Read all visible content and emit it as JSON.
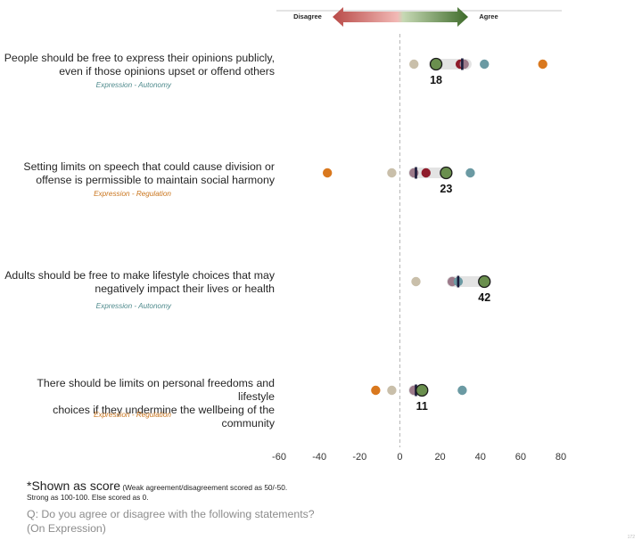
{
  "header": {
    "disagree_label": "Disagree",
    "agree_label": "Agree",
    "disagree_color": "#b84a47",
    "agree_color": "#3e6b2a"
  },
  "statements": [
    {
      "line1": "People should be free to express their opinions publicly,",
      "line2": "even if those opinions upset or offend others",
      "tag": "Expression - Autonomy",
      "tag_color": "#4e8a8c"
    },
    {
      "line1": "Setting limits on speech that could cause division or",
      "line2": "offense is permissible to maintain social harmony",
      "tag": "Expression - Regulation",
      "tag_color": "#c9741c"
    },
    {
      "line1": "Adults should be free to make lifestyle choices that may",
      "line2": "negatively impact their lives or health",
      "tag": "Expression - Autonomy",
      "tag_color": "#4e8a8c"
    },
    {
      "line1": "There should be limits on personal freedoms and lifestyle",
      "line2": "choices if they undermine the wellbeing of the community",
      "tag": "Expression - Regulation",
      "tag_color": "#c9741c"
    }
  ],
  "chart_data": {
    "type": "scatter",
    "xlim": [
      -60,
      80
    ],
    "xticks": [
      -60,
      -40,
      -20,
      0,
      20,
      40,
      60,
      80
    ],
    "grid": false,
    "rows": [
      {
        "value_label": "18",
        "highlight": 18,
        "band": [
          17,
          33
        ],
        "marker": 31,
        "points": [
          {
            "x": 7,
            "color": "#c9bfaa"
          },
          {
            "x": 30,
            "color": "#8f1c2b"
          },
          {
            "x": 32,
            "color": "#9c7a8a"
          },
          {
            "x": 42,
            "color": "#6b9aa3"
          },
          {
            "x": 71,
            "color": "#d9781e"
          }
        ]
      },
      {
        "value_label": "23",
        "highlight": 23,
        "band": [
          7,
          23
        ],
        "marker": 8,
        "points": [
          {
            "x": -36,
            "color": "#d9781e"
          },
          {
            "x": -4,
            "color": "#c9bfaa"
          },
          {
            "x": 7,
            "color": "#9c7a8a"
          },
          {
            "x": 13,
            "color": "#8f1c2b"
          },
          {
            "x": 35,
            "color": "#6b9aa3"
          }
        ]
      },
      {
        "value_label": "42",
        "highlight": 42,
        "band": [
          26,
          42
        ],
        "marker": 29,
        "points": [
          {
            "x": 8,
            "color": "#c9bfaa"
          },
          {
            "x": 26,
            "color": "#9c7a8a"
          },
          {
            "x": 29,
            "color": "#6b9aa3"
          }
        ]
      },
      {
        "value_label": "11",
        "highlight": 11,
        "band": [
          7,
          11
        ],
        "marker": 8,
        "points": [
          {
            "x": -12,
            "color": "#d9781e"
          },
          {
            "x": -4,
            "color": "#c9bfaa"
          },
          {
            "x": 7,
            "color": "#9c7a8a"
          },
          {
            "x": 31,
            "color": "#6b9aa3"
          }
        ]
      }
    ],
    "highlight_color": "#6a8f4e",
    "marker_color": "#1a1a3a"
  },
  "notes": {
    "shown_as_score": "*Shown as score",
    "weak_note": " (Weak agreement/disagreement scored as 50/-50.",
    "strong_note": "Strong as 100-100. Else scored as 0.",
    "question_line1": "Q: Do you agree or disagree with the following statements?",
    "question_line2": "(On Expression)",
    "page": "172"
  }
}
